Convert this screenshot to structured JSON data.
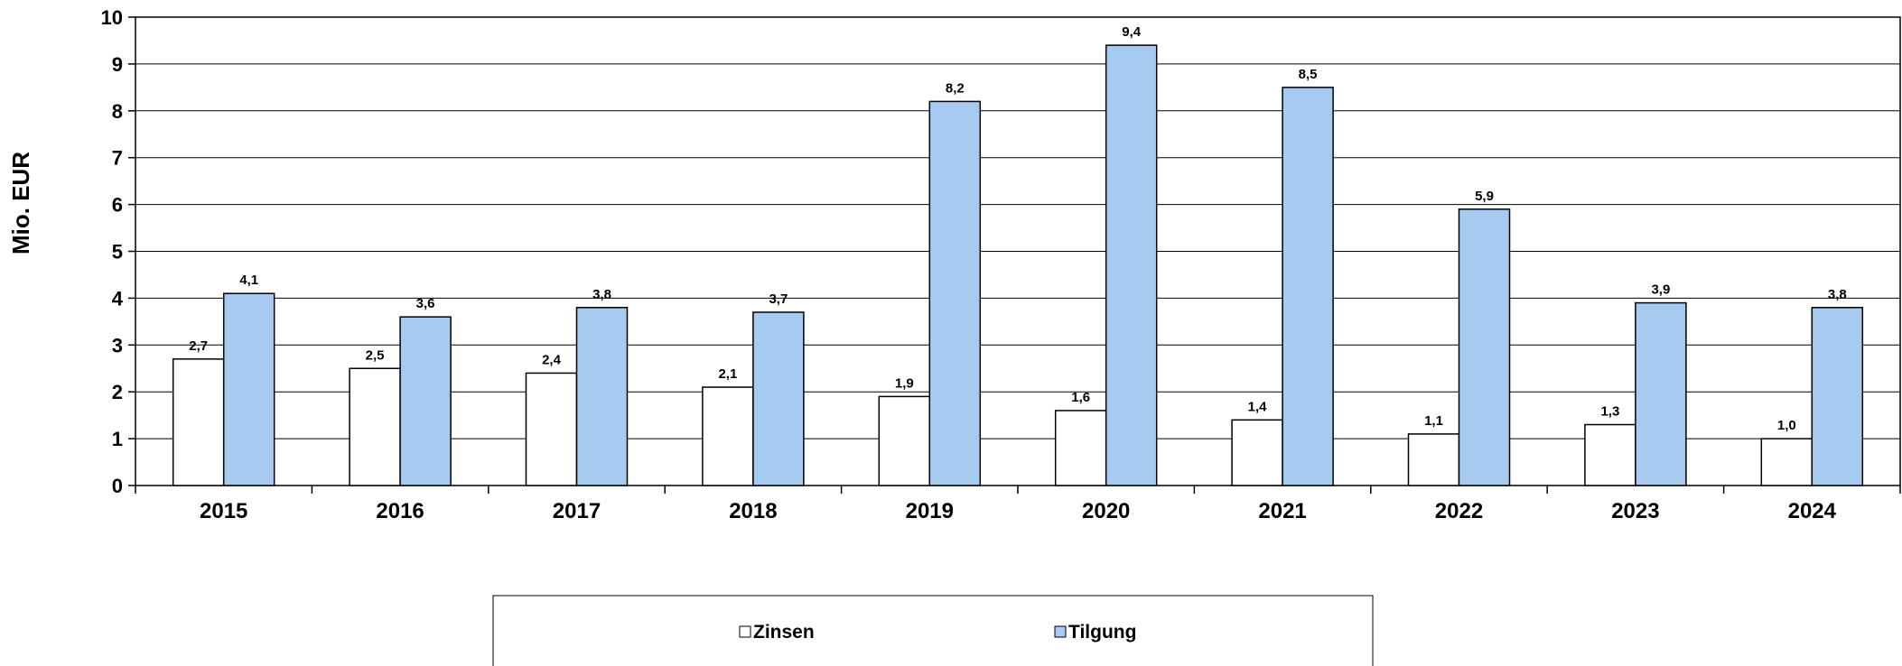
{
  "chart_data": {
    "type": "bar",
    "ylabel": "Mio. EUR",
    "ylim": [
      0,
      10
    ],
    "yticks": [
      "0",
      "1",
      "2",
      "3",
      "4",
      "5",
      "6",
      "7",
      "8",
      "9",
      "10"
    ],
    "grid": true,
    "legend_position": "bottom",
    "categories": [
      "2015",
      "2016",
      "2017",
      "2018",
      "2019",
      "2020",
      "2021",
      "2022",
      "2023",
      "2024"
    ],
    "series": [
      {
        "name": "Zinsen",
        "color": "#ffffff",
        "values": [
          2.7,
          2.5,
          2.4,
          2.1,
          1.9,
          1.6,
          1.4,
          1.1,
          1.3,
          1.0
        ],
        "labels": [
          "2,7",
          "2,5",
          "2,4",
          "2,1",
          "1,9",
          "1,6",
          "1,4",
          "1,1",
          "1,3",
          "1,0"
        ]
      },
      {
        "name": "Tilgung",
        "color": "#a6caf0",
        "values": [
          4.1,
          3.6,
          3.8,
          3.7,
          8.2,
          9.4,
          8.5,
          5.9,
          3.9,
          3.8
        ],
        "labels": [
          "4,1",
          "3,6",
          "3,8",
          "3,7",
          "8,2",
          "9,4",
          "8,5",
          "5,9",
          "3,9",
          "3,8"
        ]
      }
    ]
  }
}
